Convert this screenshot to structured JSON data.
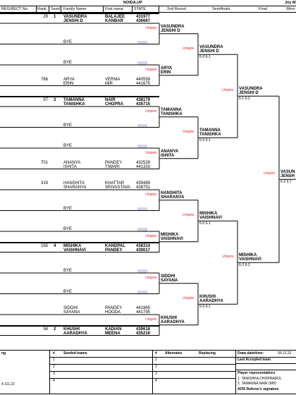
{
  "event": "NOIDA,UP",
  "header_right": "Joy M",
  "columns": {
    "reg": "REG/RECT No.",
    "rank": "Rank",
    "seed": "Seed",
    "family": "Family Name",
    "first": "First name",
    "state": "STATE",
    "round2": "2nd Round",
    "semis": "Semifinals",
    "final": "Final",
    "winner": "Winn"
  },
  "draw": [
    {
      "rank": "29",
      "seed": "1",
      "p1": [
        "VASUNDRA",
        "BALAJEE",
        "431977"
      ],
      "p2": [
        "JENSHI D",
        "KANBAR",
        "436667"
      ]
    },
    {
      "bye": "BYE"
    },
    {
      "bye": "BYE"
    },
    {
      "rank": "766",
      "p1": [
        "ARYA",
        "VERMA",
        "440558"
      ],
      "p2": [
        "ERIN",
        "MIR",
        "441675"
      ]
    },
    {
      "rank": "97",
      "seed": "3",
      "p1": [
        "TAMANNA",
        "NAIR",
        "438179"
      ],
      "p2": [
        "TANISHKA",
        "CHOPRA",
        "435715"
      ]
    },
    {
      "bye": "BYE"
    },
    {
      "bye": "BYE"
    },
    {
      "rank": "701",
      "p1": [
        "ANANYA",
        "PANDEY",
        "432528"
      ],
      "p2": [
        "ISHITA",
        "TIWARI",
        "441333"
      ]
    },
    {
      "rank": "319",
      "p1": [
        "HANSHITA",
        "KHATTAR",
        "439489"
      ],
      "p2": [
        "SHARANYA",
        "SRIVASTAVA",
        "438751"
      ]
    },
    {
      "bye": "BYE"
    },
    {
      "bye": "BYE"
    },
    {
      "rank": "165",
      "seed": "4",
      "p1": [
        "MISHIKA",
        "KANDPAL",
        "438314"
      ],
      "p2": [
        "VAISHNAVI",
        "PANDEY",
        "439017"
      ]
    },
    {
      "bye": "BYE"
    },
    {
      "bye": "BYE"
    },
    {
      "p1": [
        "SIDDHI",
        "PANDEY",
        "441965"
      ],
      "p2": [
        "SAYANA",
        "HOODA",
        "441795"
      ]
    },
    {
      "rank": "58",
      "seed": "2",
      "p1": [
        "KHUSHI",
        "KADIAN",
        "439618"
      ],
      "p2": [
        "AARADHYA",
        "MEENA",
        "435216"
      ]
    }
  ],
  "round1_winners": [
    {
      "n1": "VASUNDRA",
      "n2": "JENSHI D",
      "score": ""
    },
    {
      "n1": "ARYA",
      "n2": "ERIN",
      "score": ""
    },
    {
      "n1": "TAMANNA",
      "n2": "TANISHKA",
      "score": ""
    },
    {
      "n1": "ANANYA",
      "n2": "ISHITA",
      "score": ""
    },
    {
      "n1": "HANSHITA",
      "n2": "SHARANYA",
      "score": ""
    },
    {
      "n1": "MISHIKA",
      "n2": "VAISHNAVI",
      "score": ""
    },
    {
      "n1": "SIDDHI",
      "n2": "SAYANA",
      "score": ""
    },
    {
      "n1": "KHUSHI",
      "n2": "AARADHYA",
      "score": ""
    }
  ],
  "round2_winners": [
    {
      "n1": "VASUNDRA",
      "n2": "JENSHI D",
      "score": "6-0 6-1"
    },
    {
      "n1": "TAMANNA",
      "n2": "TANISHKA",
      "score": "6-0 6-1"
    },
    {
      "n1": "MISHIKA",
      "n2": "VAISHNAVI",
      "score": "6-0 6-1"
    },
    {
      "n1": "KHUSHI",
      "n2": "AARADHYA",
      "score": "6-0 6-1"
    }
  ],
  "semi_winners": [
    {
      "n1": "VASUNDRA",
      "n2": "JENSHI D",
      "score": "6-1 6-2"
    },
    {
      "n1": "MISHIKA",
      "n2": "VAISHNAVI",
      "score": "6-2 6-2"
    }
  ],
  "champion": {
    "n1": "VASUN",
    "n2": "JENSH",
    "score": "6-2 5-7"
  },
  "umpire": "Umpire",
  "footer": {
    "left_label": "ng",
    "left_date": "4.111.22",
    "hash": "#",
    "seeded_title": "Seeded teams",
    "alternates_title": "Alternates",
    "replacing_title": "Replacing",
    "rows": [
      "1",
      "2",
      "3",
      "4"
    ],
    "draw_date_label": "Draw date/time:",
    "draw_date_value": "05.12.22",
    "last_accepted": "Last Accepted team",
    "player_reps": "Player representatives",
    "rep1": "1. TANISHKA CHOPRA(RJ)",
    "rep2": "2. TAMANNA NAIR (MH)",
    "referee": "AITA  Referee's signature"
  }
}
